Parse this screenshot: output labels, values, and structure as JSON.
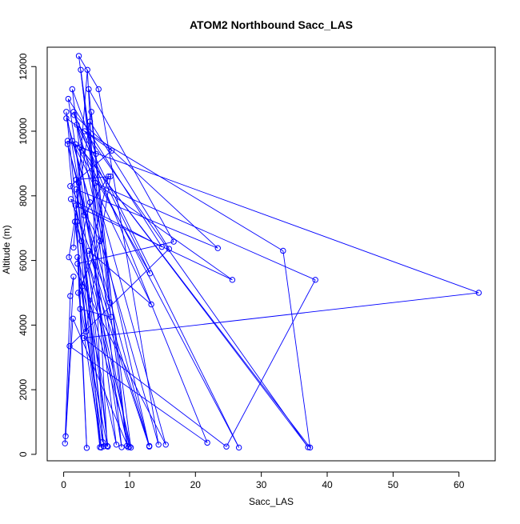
{
  "chart_data": {
    "type": "line",
    "title": "ATOM2 Northbound Sacc_LAS",
    "xlabel": "Sacc_LAS",
    "ylabel": "Altitude (m)",
    "xlim": [
      -2.5,
      65.5
    ],
    "ylim": [
      -200,
      12600
    ],
    "xticks": [
      0,
      10,
      20,
      30,
      40,
      50,
      60
    ],
    "yticks": [
      0,
      2000,
      4000,
      6000,
      8000,
      10000,
      12000
    ],
    "grid": false,
    "line_color": "#0000ff",
    "marker": "open-circle",
    "points": [
      [
        0.2,
        340
      ],
      [
        1.0,
        4900
      ],
      [
        1.5,
        5500
      ],
      [
        0.3,
        560
      ],
      [
        1.4,
        4200
      ],
      [
        9.8,
        220
      ],
      [
        2.0,
        7200
      ],
      [
        3.5,
        200
      ],
      [
        2.1,
        6100
      ],
      [
        10.0,
        240
      ],
      [
        2.3,
        8400
      ],
      [
        5.5,
        220
      ],
      [
        1.7,
        7200
      ],
      [
        13.0,
        240
      ],
      [
        2.0,
        10200
      ],
      [
        13.1,
        5600
      ],
      [
        1.8,
        9600
      ],
      [
        6.7,
        240
      ],
      [
        1.9,
        8200
      ],
      [
        23.4,
        6380
      ],
      [
        1.6,
        10500
      ],
      [
        26.6,
        210
      ],
      [
        2.9,
        9400
      ],
      [
        37.1,
        220
      ],
      [
        3.2,
        10000
      ],
      [
        33.3,
        6300
      ],
      [
        37.4,
        210
      ],
      [
        2.5,
        9500
      ],
      [
        63.0,
        5000
      ],
      [
        3.0,
        3600
      ],
      [
        24.7,
        240
      ],
      [
        38.2,
        5400
      ],
      [
        4.8,
        8400
      ],
      [
        25.6,
        5400
      ],
      [
        1.8,
        7700
      ],
      [
        10.2,
        210
      ],
      [
        2.6,
        11900
      ],
      [
        8.8,
        220
      ],
      [
        0.7,
        11000
      ],
      [
        14.9,
        6420
      ],
      [
        1.1,
        7900
      ],
      [
        7.0,
        4700
      ],
      [
        3.8,
        11300
      ],
      [
        16.7,
        6580
      ],
      [
        2.1,
        5900
      ],
      [
        5.9,
        380
      ],
      [
        4.0,
        10300
      ],
      [
        16.0,
        6360
      ],
      [
        0.9,
        3350
      ],
      [
        21.8,
        360
      ],
      [
        1.5,
        10600
      ],
      [
        15.5,
        300
      ],
      [
        0.8,
        6100
      ],
      [
        4.2,
        10600
      ],
      [
        9.6,
        260
      ],
      [
        2.3,
        12330
      ],
      [
        5.3,
        11300
      ],
      [
        14.4,
        300
      ],
      [
        1.3,
        9700
      ],
      [
        13.3,
        4640
      ],
      [
        3.8,
        6300
      ],
      [
        13.0,
        260
      ],
      [
        0.6,
        9600
      ],
      [
        7.2,
        4250
      ],
      [
        2.5,
        4500
      ],
      [
        5.7,
        210
      ],
      [
        0.4,
        10600
      ],
      [
        3.1,
        7400
      ],
      [
        6.8,
        8600
      ],
      [
        2.8,
        5200
      ],
      [
        8.0,
        300
      ],
      [
        1.3,
        11300
      ],
      [
        4.9,
        9300
      ],
      [
        0.6,
        9700
      ],
      [
        3.4,
        3800
      ],
      [
        7.1,
        8600
      ],
      [
        1.9,
        8500
      ],
      [
        6.1,
        250
      ],
      [
        2.7,
        6600
      ],
      [
        4.0,
        7800
      ],
      [
        0.4,
        10400
      ],
      [
        7.3,
        9400
      ],
      [
        1.0,
        8300
      ],
      [
        5.5,
        6600
      ],
      [
        2.2,
        5000
      ],
      [
        6.6,
        260
      ],
      [
        3.6,
        11900
      ],
      [
        1.5,
        6400
      ]
    ]
  }
}
